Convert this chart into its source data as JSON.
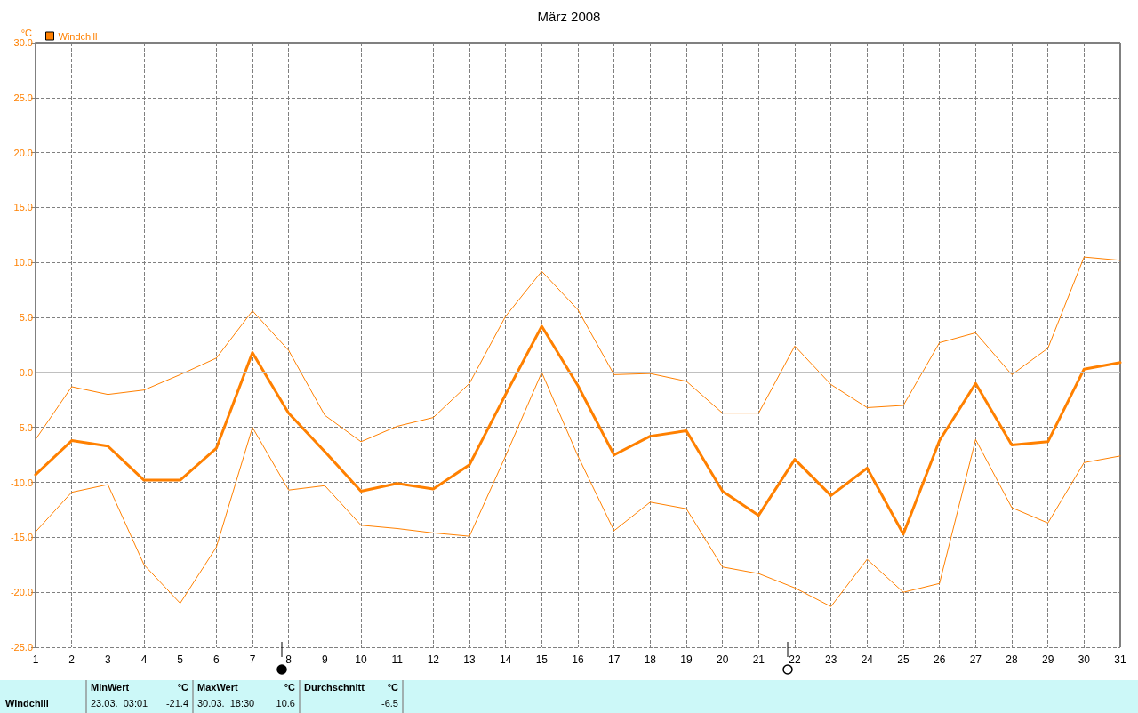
{
  "chart_data": {
    "type": "line",
    "title": "März 2008",
    "ylabel": "°C",
    "legend": "top left",
    "grid": true,
    "line_style": "solid",
    "marker": "none",
    "x": [
      1,
      2,
      3,
      4,
      5,
      6,
      7,
      8,
      9,
      10,
      11,
      12,
      13,
      14,
      15,
      16,
      17,
      18,
      19,
      20,
      21,
      22,
      23,
      24,
      25,
      26,
      27,
      28,
      29,
      30,
      31
    ],
    "xlim": [
      1,
      31
    ],
    "xticks": [
      1,
      2,
      3,
      4,
      5,
      6,
      7,
      8,
      9,
      10,
      11,
      12,
      13,
      14,
      15,
      16,
      17,
      18,
      19,
      20,
      21,
      22,
      23,
      24,
      25,
      26,
      27,
      28,
      29,
      30,
      31
    ],
    "ylim": [
      -25,
      30
    ],
    "yticks": [
      {
        "value": -25,
        "label": "-25.0"
      },
      {
        "value": -20,
        "label": "-20.0"
      },
      {
        "value": -15,
        "label": "-15.0"
      },
      {
        "value": -10,
        "label": "-10.0"
      },
      {
        "value": -5,
        "label": "-5.0"
      },
      {
        "value": 0,
        "label": "0.0"
      },
      {
        "value": 5,
        "label": "5.0"
      },
      {
        "value": 10,
        "label": "10.0"
      },
      {
        "value": 15,
        "label": "15.0"
      },
      {
        "value": 20,
        "label": "20.0"
      },
      {
        "value": 25,
        "label": "25.0"
      },
      {
        "value": 30,
        "label": "30.0"
      }
    ],
    "ref_lines": [
      {
        "axis": "y",
        "value": 0,
        "color": "#c0c0c0"
      }
    ],
    "series": [
      {
        "color": "#ff8000",
        "values": [
          -6.1,
          -1.3,
          -2.0,
          -1.6,
          -0.2,
          1.3,
          5.6,
          2.0,
          -3.9,
          -6.3,
          -4.9,
          -4.1,
          -1.0,
          5.1,
          9.2,
          5.7,
          -0.2,
          -0.1,
          -0.8,
          -3.7,
          -3.7,
          2.4,
          -1.1,
          -3.2,
          -3.0,
          2.7,
          3.6,
          -0.2,
          2.2,
          10.5,
          10.2
        ]
      },
      {
        "name": "Windchill",
        "color": "#ff8000",
        "values": [
          -9.3,
          -6.2,
          -6.7,
          -9.8,
          -9.8,
          -6.9,
          1.8,
          -3.7,
          -7.2,
          -10.8,
          -10.1,
          -10.6,
          -8.4,
          -2.0,
          4.2,
          -1.2,
          -7.5,
          -5.8,
          -5.3,
          -10.8,
          -13.0,
          -7.9,
          -11.2,
          -8.7,
          -14.7,
          -6.2,
          -1.0,
          -6.6,
          -6.3,
          0.3,
          0.9
        ]
      },
      {
        "color": "#ff8000",
        "values": [
          -14.5,
          -10.9,
          -10.2,
          -17.5,
          -21.0,
          -15.9,
          -5.0,
          -10.7,
          -10.3,
          -13.9,
          -14.2,
          -14.6,
          -14.9,
          -7.6,
          0.0,
          -7.6,
          -14.4,
          -11.8,
          -12.4,
          -17.7,
          -18.3,
          -19.6,
          -21.3,
          -17.0,
          -20.0,
          -19.2,
          -6.1,
          -12.3,
          -13.7,
          -8.2,
          -7.6
        ]
      }
    ],
    "annotations": [
      "Windchill",
      "MinWert",
      "°C",
      "23.03.  03:01",
      "-21.4",
      "MaxWert",
      "°C",
      "30.03.  18:30",
      "10.6",
      "Durchschnitt",
      "°C",
      "-6.5"
    ]
  }
}
